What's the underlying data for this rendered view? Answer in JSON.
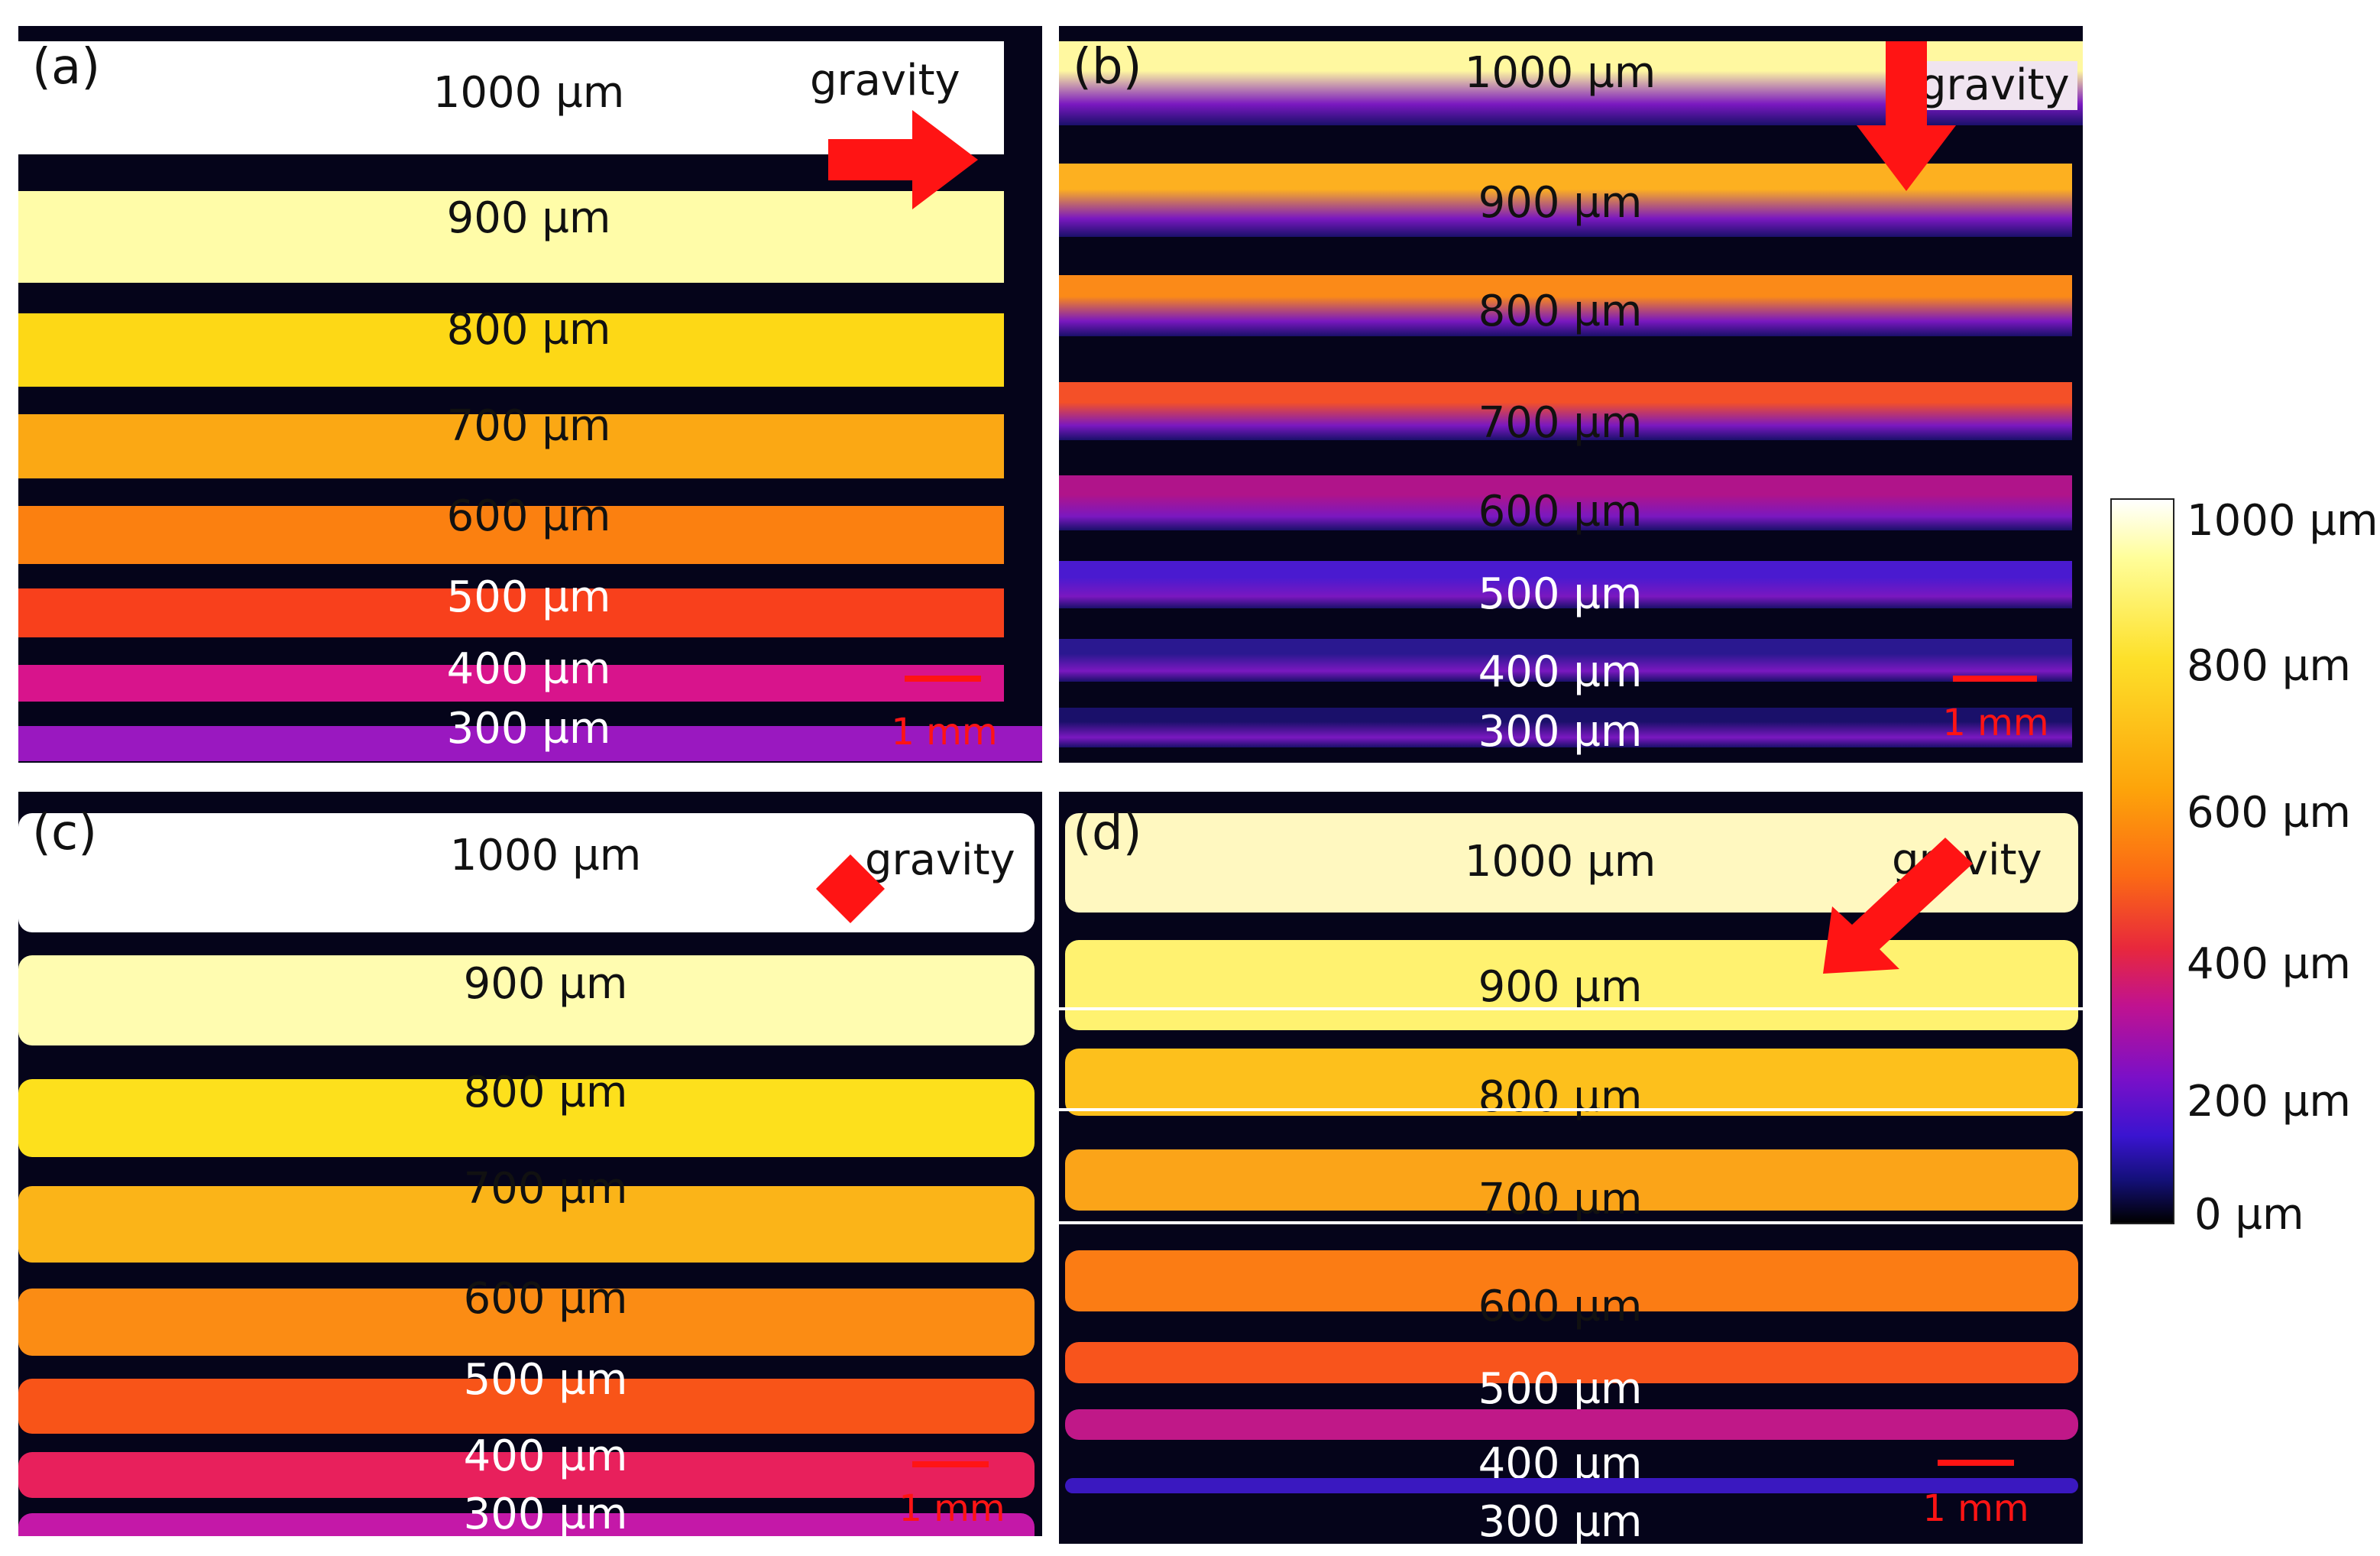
{
  "panels": [
    {
      "id": "a",
      "label": "(a)",
      "gravity": "gravity",
      "scale": "1 mm",
      "strips": [
        "1000 µm",
        "900 µm",
        "800 µm",
        "700 µm",
        "600 µm",
        "500 µm",
        "400 µm",
        "300 µm"
      ]
    },
    {
      "id": "b",
      "label": "(b)",
      "gravity": "gravity",
      "scale": "1 mm",
      "strips": [
        "1000 µm",
        "900 µm",
        "800 µm",
        "700 µm",
        "600 µm",
        "500 µm",
        "400 µm",
        "300 µm"
      ]
    },
    {
      "id": "c",
      "label": "(c)",
      "gravity": "gravity",
      "scale": "1 mm",
      "strips": [
        "1000 µm",
        "900 µm",
        "800 µm",
        "700 µm",
        "600 µm",
        "500 µm",
        "400 µm",
        "300 µm"
      ]
    },
    {
      "id": "d",
      "label": "(d)",
      "gravity": "gravity",
      "scale": "1 mm",
      "strips": [
        "1000 µm",
        "900 µm",
        "800 µm",
        "700 µm",
        "600 µm",
        "500 µm",
        "400 µm",
        "300 µm"
      ]
    }
  ],
  "colorbar": {
    "ticks": [
      "1000 µm",
      "800 µm",
      "600 µm",
      "400 µm",
      "200 µm",
      "0 µm"
    ]
  },
  "colors": {
    "arrow": "#ff1414",
    "stripA": [
      "#ffffff",
      "#fffca8",
      "#fdd816",
      "#fba814",
      "#fb8010",
      "#f8401c",
      "#d8148c",
      "#9a18c0"
    ],
    "stripB": [
      "#fff8a0",
      "#fdb020",
      "#fb8a18",
      "#f45028",
      "#b0148a",
      "#4a1ad0",
      "#2a1890",
      "#1a106a"
    ],
    "stripC": [
      "#ffffff",
      "#fffcb0",
      "#fde01c",
      "#fbb418",
      "#fb8c14",
      "#f85418",
      "#e8205c",
      "#c418a8"
    ],
    "stripD": [
      "#fff8c0",
      "#fff270",
      "#fdc01c",
      "#fba418",
      "#fb7c14",
      "#f8541c",
      "#c01888",
      "#3a18c0"
    ]
  }
}
